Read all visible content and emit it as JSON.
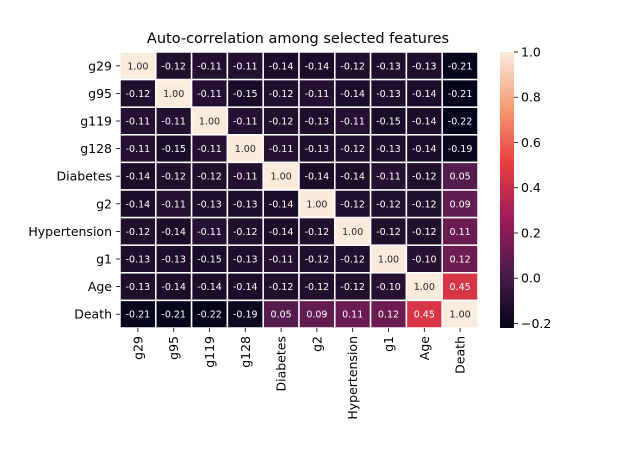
{
  "chart_data": {
    "type": "heatmap",
    "title": "Auto-correlation among selected features",
    "rows": [
      "g29",
      "g95",
      "g119",
      "g128",
      "Diabetes",
      "g2",
      "Hypertension",
      "g1",
      "Age",
      "Death"
    ],
    "columns": [
      "g29",
      "g95",
      "g119",
      "g128",
      "Diabetes",
      "g2",
      "Hypertension",
      "g1",
      "Age",
      "Death"
    ],
    "values": [
      [
        1.0,
        -0.12,
        -0.11,
        -0.11,
        -0.14,
        -0.14,
        -0.12,
        -0.13,
        -0.13,
        -0.21
      ],
      [
        -0.12,
        1.0,
        -0.11,
        -0.15,
        -0.12,
        -0.11,
        -0.14,
        -0.13,
        -0.14,
        -0.21
      ],
      [
        -0.11,
        -0.11,
        1.0,
        -0.11,
        -0.12,
        -0.13,
        -0.11,
        -0.15,
        -0.14,
        -0.22
      ],
      [
        -0.11,
        -0.15,
        -0.11,
        1.0,
        -0.11,
        -0.13,
        -0.12,
        -0.13,
        -0.14,
        -0.19
      ],
      [
        -0.14,
        -0.12,
        -0.12,
        -0.11,
        1.0,
        -0.14,
        -0.14,
        -0.11,
        -0.12,
        0.05
      ],
      [
        -0.14,
        -0.11,
        -0.13,
        -0.13,
        -0.14,
        1.0,
        -0.12,
        -0.12,
        -0.12,
        0.09
      ],
      [
        -0.12,
        -0.14,
        -0.11,
        -0.12,
        -0.14,
        -0.12,
        1.0,
        -0.12,
        -0.12,
        0.11
      ],
      [
        -0.13,
        -0.13,
        -0.15,
        -0.13,
        -0.11,
        -0.12,
        -0.12,
        1.0,
        -0.1,
        0.12
      ],
      [
        -0.13,
        -0.14,
        -0.14,
        -0.14,
        -0.12,
        -0.12,
        -0.12,
        -0.1,
        1.0,
        0.45
      ],
      [
        -0.21,
        -0.21,
        -0.22,
        -0.19,
        0.05,
        0.09,
        0.11,
        0.12,
        0.45,
        1.0
      ]
    ],
    "value_format": "0.00",
    "colorbar": {
      "min": -0.22,
      "max": 1.0,
      "ticks": [
        -0.2,
        0.0,
        0.2,
        0.4,
        0.6,
        0.8,
        1.0
      ],
      "tick_labels": [
        "−0.2",
        "0.0",
        "0.2",
        "0.4",
        "0.6",
        "0.8",
        "1.0"
      ],
      "colormap": "rocket",
      "colormap_stops": [
        "#03051a",
        "#4c1d4b",
        "#a11a5b",
        "#e83f3f",
        "#f69c73",
        "#faebdd"
      ]
    },
    "cell_border_color": "#ffffff"
  }
}
